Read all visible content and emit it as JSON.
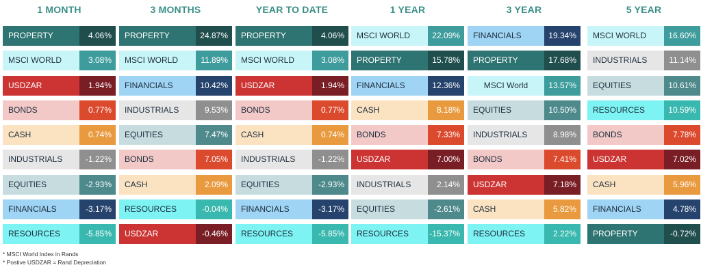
{
  "chart_data": {
    "type": "table",
    "columns": [
      {
        "header": "1 MONTH",
        "rows": [
          {
            "label": "PROPERTY",
            "value": "4.06%"
          },
          {
            "label": "MSCI WORLD",
            "value": "3.08%"
          },
          {
            "label": "USDZAR",
            "value": "1.94%"
          },
          {
            "label": "BONDS",
            "value": "0.77%"
          },
          {
            "label": "CASH",
            "value": "0.74%"
          },
          {
            "label": "INDUSTRIALS",
            "value": "-1.22%"
          },
          {
            "label": "EQUITIES",
            "value": "-2.93%"
          },
          {
            "label": "FINANCIALS",
            "value": "-3.17%"
          },
          {
            "label": "RESOURCES",
            "value": "-5.85%"
          }
        ]
      },
      {
        "header": "3 MONTHS",
        "rows": [
          {
            "label": "PROPERTY",
            "value": "24.87%"
          },
          {
            "label": "MSCI WORLD",
            "value": "11.89%"
          },
          {
            "label": "FINANCIALS",
            "value": "10.42%"
          },
          {
            "label": "INDUSTRIALS",
            "value": "9.53%"
          },
          {
            "label": "EQUITIES",
            "value": "7.47%"
          },
          {
            "label": "BONDS",
            "value": "7.05%"
          },
          {
            "label": "CASH",
            "value": "2.09%"
          },
          {
            "label": "RESOURCES",
            "value": "-0.04%"
          },
          {
            "label": "USDZAR",
            "value": "-0.46%"
          }
        ]
      },
      {
        "header": "YEAR TO DATE",
        "rows": [
          {
            "label": "PROPERTY",
            "value": "4.06%"
          },
          {
            "label": "MSCI WORLD",
            "value": "3.08%"
          },
          {
            "label": "USDZAR",
            "value": "1.94%"
          },
          {
            "label": "BONDS",
            "value": "0.77%"
          },
          {
            "label": "CASH",
            "value": "0.74%"
          },
          {
            "label": "INDUSTRIALS",
            "value": "-1.22%"
          },
          {
            "label": "EQUITIES",
            "value": "-2.93%"
          },
          {
            "label": "FINANCIALS",
            "value": "-3.17%"
          },
          {
            "label": "RESOURCES",
            "value": "-5.85%"
          }
        ]
      },
      {
        "header": "1 YEAR",
        "rows": [
          {
            "label": "MSCI WORLD",
            "value": "22.09%"
          },
          {
            "label": "PROPERTY",
            "value": "15.78%"
          },
          {
            "label": "FINANCIALS",
            "value": "12.36%"
          },
          {
            "label": "CASH",
            "value": "8.18%"
          },
          {
            "label": "BONDS",
            "value": "7.33%"
          },
          {
            "label": "USDZAR",
            "value": "7.00%"
          },
          {
            "label": "INDUSTRIALS",
            "value": "2.14%"
          },
          {
            "label": "EQUITIES",
            "value": "-2.61%"
          },
          {
            "label": "RESOURCES",
            "value": "-15.37%"
          }
        ]
      },
      {
        "header": "3 YEAR",
        "rows": [
          {
            "label": "FINANCIALS",
            "value": "19.34%"
          },
          {
            "label": "PROPERTY",
            "value": "17.68%"
          },
          {
            "label": "MSCI World",
            "value": "13.57%"
          },
          {
            "label": "EQUITIES",
            "value": "10.50%"
          },
          {
            "label": "INDUSTRIALS",
            "value": "8.98%"
          },
          {
            "label": "BONDS",
            "value": "7.41%"
          },
          {
            "label": "USDZAR",
            "value": "7.18%"
          },
          {
            "label": "CASH",
            "value": "5.82%"
          },
          {
            "label": "RESOURCES",
            "value": "2.22%"
          }
        ]
      },
      {
        "header": "5 YEAR",
        "rows": [
          {
            "label": "MSCI WORLD",
            "value": "16.60%"
          },
          {
            "label": "INDUSTRIALS",
            "value": "11.14%"
          },
          {
            "label": "EQUITIES",
            "value": "10.61%"
          },
          {
            "label": "RESOURCES",
            "value": "10.59%"
          },
          {
            "label": "BONDS",
            "value": "7.78%"
          },
          {
            "label": "USDZAR",
            "value": "7.02%"
          },
          {
            "label": "CASH",
            "value": "5.96%"
          },
          {
            "label": "FINANCIALS",
            "value": "4.78%"
          },
          {
            "label": "PROPERTY",
            "value": "-0.72%"
          }
        ]
      }
    ],
    "asset_colors": {
      "PROPERTY": {
        "label_bg": "#2e7472",
        "label_fg": "#ffffff",
        "value_bg": "#1f4e4d"
      },
      "MSCI WORLD": {
        "label_bg": "#c8f6f8",
        "label_fg": "#1e2e3e",
        "value_bg": "#3e9c9c"
      },
      "USDZAR": {
        "label_bg": "#cc3433",
        "label_fg": "#ffffff",
        "value_bg": "#7a1e26"
      },
      "BONDS": {
        "label_bg": "#f2c9c7",
        "label_fg": "#1e2e3e",
        "value_bg": "#dc4a2e"
      },
      "CASH": {
        "label_bg": "#fbe3c1",
        "label_fg": "#1e2e3e",
        "value_bg": "#e99a3e"
      },
      "INDUSTRIALS": {
        "label_bg": "#e6e6e6",
        "label_fg": "#1e2e3e",
        "value_bg": "#8f8f8f"
      },
      "EQUITIES": {
        "label_bg": "#c6dcdf",
        "label_fg": "#1e2e3e",
        "value_bg": "#4e8a8c"
      },
      "FINANCIALS": {
        "label_bg": "#9fd4f4",
        "label_fg": "#1e2e3e",
        "value_bg": "#26436e"
      },
      "RESOURCES": {
        "label_bg": "#7df3f3",
        "label_fg": "#1e2e3e",
        "value_bg": "#38b8ae"
      }
    },
    "header_color": "#3a8f86"
  },
  "footnotes": [
    "* MSCI World Index in  Rands",
    "* Postive USDZAR = Rand Depreciation"
  ]
}
